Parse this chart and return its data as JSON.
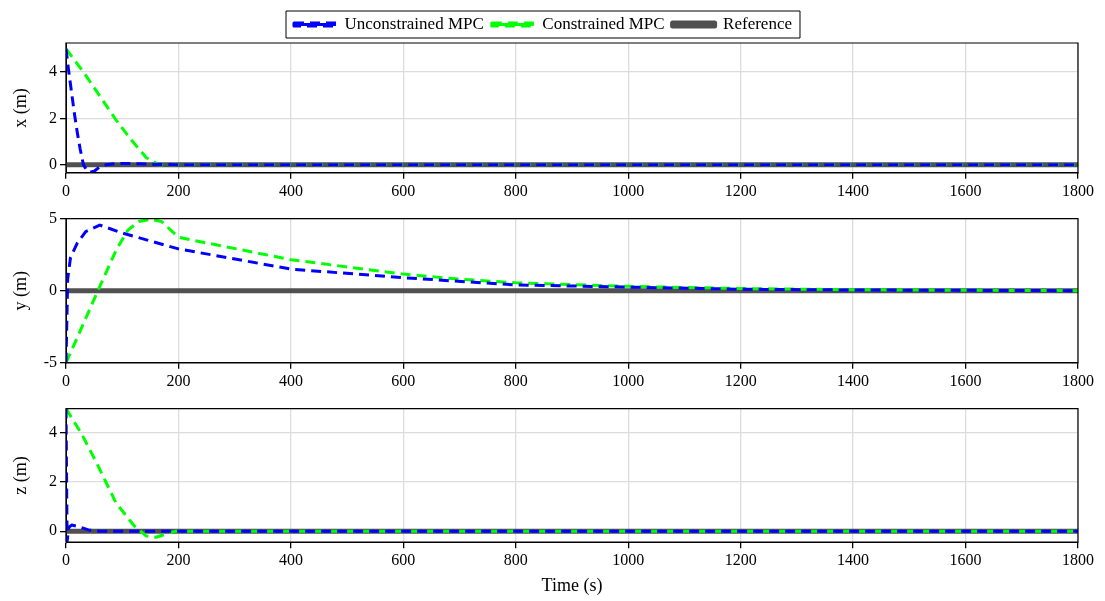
{
  "chart_data": [
    {
      "type": "line",
      "ylabel": "x (m)",
      "xlim": [
        0,
        1800
      ],
      "xticks": [
        0,
        200,
        400,
        600,
        800,
        1000,
        1200,
        1400,
        1600,
        1800
      ],
      "ylim": [
        -0.35,
        5.25
      ],
      "yticks": [
        0,
        2,
        4
      ],
      "grid": true,
      "legend": "top",
      "series": [
        {
          "name": "Unconstrained MPC",
          "color": "#0000ff",
          "line_style": "dashed",
          "x": [
            0,
            5,
            10,
            15,
            20,
            25,
            31,
            37,
            43,
            50,
            60,
            72,
            90,
            110,
            150,
            200,
            1800
          ],
          "values": [
            5,
            4,
            3.1,
            2.2,
            1.4,
            0.7,
            0,
            -0.25,
            -0.33,
            -0.28,
            -0.1,
            0,
            0.05,
            0.05,
            0.02,
            0,
            0
          ]
        },
        {
          "name": "Constrained MPC",
          "color": "#00ff00",
          "line_style": "dashed",
          "x": [
            0,
            31,
            87,
            115,
            143,
            165,
            200,
            1800
          ],
          "values": [
            5,
            4,
            2,
            1.1,
            0.3,
            0,
            0,
            0
          ]
        },
        {
          "name": "Reference",
          "color": "#505050",
          "line_style": "solid",
          "x": [
            0,
            1800
          ],
          "values": [
            0,
            0
          ]
        }
      ]
    },
    {
      "type": "line",
      "ylabel": "y (m)",
      "xlim": [
        0,
        1800
      ],
      "xticks": [
        0,
        200,
        400,
        600,
        800,
        1000,
        1200,
        1400,
        1600,
        1800
      ],
      "ylim": [
        -5,
        5
      ],
      "yticks": [
        -5,
        0,
        5
      ],
      "grid": true,
      "series": [
        {
          "color": "#0000ff",
          "line_style": "dashed",
          "x": [
            0,
            3,
            8,
            20,
            35,
            60,
            100,
            200,
            400,
            600,
            800,
            1000,
            1200,
            1400,
            1800
          ],
          "values": [
            -5,
            0.8,
            2.3,
            3.3,
            4.1,
            4.55,
            4.0,
            2.9,
            1.5,
            0.9,
            0.4,
            0.25,
            0.1,
            0.05,
            0
          ]
        },
        {
          "color": "#00ff00",
          "line_style": "dashed",
          "x": [
            0,
            28,
            59,
            89,
            110,
            130,
            150,
            170,
            200,
            400,
            600,
            700,
            800,
            1000,
            1200,
            1400,
            1600,
            1800
          ],
          "values": [
            -5,
            -2.55,
            0.2,
            2.8,
            4.2,
            4.8,
            4.95,
            4.8,
            3.7,
            2.15,
            1.15,
            0.8,
            0.55,
            0.3,
            0.15,
            0.07,
            0.03,
            0
          ]
        },
        {
          "color": "#505050",
          "line_style": "solid",
          "x": [
            0,
            1800
          ],
          "values": [
            0,
            0
          ]
        }
      ]
    },
    {
      "type": "line",
      "ylabel": "z (m)",
      "xlabel": "Time (s)",
      "xlim": [
        0,
        1800
      ],
      "xticks": [
        0,
        200,
        400,
        600,
        800,
        1000,
        1200,
        1400,
        1600,
        1800
      ],
      "ylim": [
        -0.45,
        5
      ],
      "yticks": [
        0,
        2,
        4
      ],
      "grid": true,
      "series": [
        {
          "color": "#0000ff",
          "line_style": "dashed",
          "x": [
            0,
            2,
            5,
            10,
            20,
            40,
            60,
            1800
          ],
          "values": [
            5,
            -0.4,
            0.15,
            0.25,
            0.2,
            0.05,
            0,
            0
          ]
        },
        {
          "color": "#00ff00",
          "line_style": "dashed",
          "x": [
            0,
            27,
            53,
            89,
            122,
            143,
            160,
            180,
            195,
            1800
          ],
          "values": [
            5,
            4,
            2.85,
            1.15,
            0.2,
            -0.2,
            -0.25,
            -0.1,
            0,
            0
          ]
        },
        {
          "color": "#505050",
          "line_style": "solid",
          "x": [
            0,
            1800
          ],
          "values": [
            0,
            0
          ]
        }
      ]
    }
  ]
}
